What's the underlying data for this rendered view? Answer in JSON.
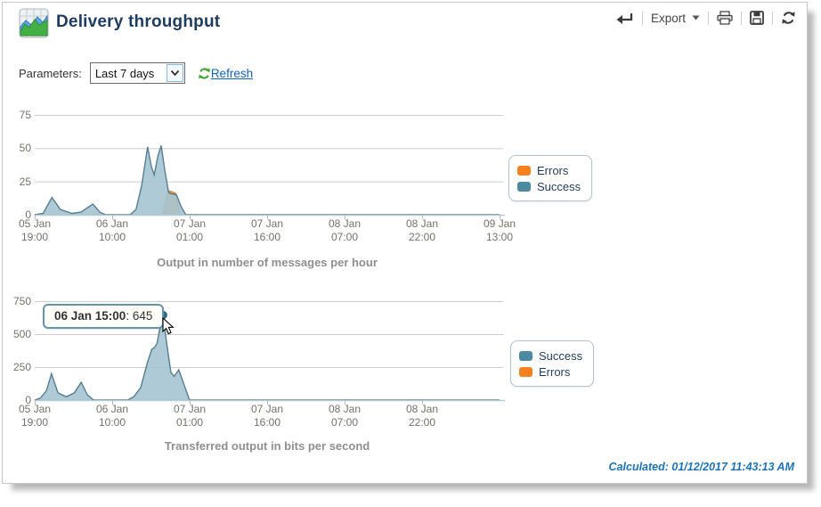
{
  "header": {
    "title": "Delivery throughput"
  },
  "toolbar": {
    "export_label": "Export"
  },
  "parameters": {
    "label": "Parameters:",
    "period_value": "Last 7 days",
    "refresh_label": "Refresh"
  },
  "chart_data": [
    {
      "type": "area",
      "title": "Output in number of messages per hour",
      "ylabel": "messages per hour",
      "ylim": [
        0,
        75
      ],
      "y_ticks": [
        0,
        25,
        50,
        75
      ],
      "x_ticks": [
        [
          "05 Jan",
          "19:00"
        ],
        [
          "06 Jan",
          "10:00"
        ],
        [
          "07 Jan",
          "01:00"
        ],
        [
          "07 Jan",
          "16:00"
        ],
        [
          "08 Jan",
          "07:00"
        ],
        [
          "08 Jan",
          "22:00"
        ],
        [
          "09 Jan",
          "13:00"
        ]
      ],
      "grid": true,
      "legend_position": "right",
      "legend": [
        {
          "label": "Errors",
          "color": "#f6821f"
        },
        {
          "label": "Success",
          "color": "#4d8aa2"
        }
      ],
      "series": [
        {
          "name": "Errors",
          "fill": "#f0a050",
          "stroke": "#df7f1f",
          "points": [
            [
              0,
              0
            ],
            [
              0.275,
              0
            ],
            [
              0.287,
              18
            ],
            [
              0.297,
              17
            ],
            [
              0.303,
              16
            ],
            [
              0.312,
              0
            ],
            [
              1,
              0
            ]
          ]
        },
        {
          "name": "Success",
          "fill": "#a5c4d2",
          "stroke": "#547e91",
          "points": [
            [
              0,
              0
            ],
            [
              0.018,
              1
            ],
            [
              0.037,
              13
            ],
            [
              0.055,
              4
            ],
            [
              0.08,
              1
            ],
            [
              0.1,
              2
            ],
            [
              0.125,
              8
            ],
            [
              0.14,
              2
            ],
            [
              0.152,
              0
            ],
            [
              0.205,
              0
            ],
            [
              0.218,
              4
            ],
            [
              0.23,
              22
            ],
            [
              0.243,
              51
            ],
            [
              0.251,
              36
            ],
            [
              0.257,
              30
            ],
            [
              0.265,
              44
            ],
            [
              0.272,
              52
            ],
            [
              0.28,
              33
            ],
            [
              0.288,
              17
            ],
            [
              0.291,
              16
            ],
            [
              0.305,
              15
            ],
            [
              0.315,
              6
            ],
            [
              0.325,
              0
            ],
            [
              1,
              0
            ]
          ]
        }
      ]
    },
    {
      "type": "area",
      "title": "Transferred output in bits per second",
      "ylabel": "bits per second",
      "ylim": [
        0,
        750
      ],
      "y_ticks": [
        0,
        250,
        500,
        750
      ],
      "x_ticks": [
        [
          "05 Jan",
          "19:00"
        ],
        [
          "06 Jan",
          "10:00"
        ],
        [
          "07 Jan",
          "01:00"
        ],
        [
          "07 Jan",
          "16:00"
        ],
        [
          "08 Jan",
          "07:00"
        ],
        [
          "08 Jan",
          "22:00"
        ]
      ],
      "grid": true,
      "legend_position": "right",
      "legend": [
        {
          "label": "Success",
          "color": "#4d8aa2"
        },
        {
          "label": "Errors",
          "color": "#f6821f"
        }
      ],
      "series": [
        {
          "name": "Errors",
          "fill": "#f0a050",
          "stroke": "#df7f1f",
          "points": [
            [
              0,
              0
            ],
            [
              1,
              0
            ]
          ]
        },
        {
          "name": "Success",
          "fill": "#a5c4d2",
          "stroke": "#547e91",
          "points": [
            [
              0,
              0
            ],
            [
              0.012,
              15
            ],
            [
              0.025,
              70
            ],
            [
              0.036,
              200
            ],
            [
              0.05,
              55
            ],
            [
              0.068,
              25
            ],
            [
              0.085,
              55
            ],
            [
              0.1,
              135
            ],
            [
              0.113,
              40
            ],
            [
              0.127,
              0
            ],
            [
              0.2,
              0
            ],
            [
              0.213,
              25
            ],
            [
              0.228,
              95
            ],
            [
              0.243,
              290
            ],
            [
              0.252,
              385
            ],
            [
              0.258,
              400
            ],
            [
              0.263,
              430
            ],
            [
              0.268,
              520
            ],
            [
              0.276,
              645
            ],
            [
              0.284,
              430
            ],
            [
              0.293,
              210
            ],
            [
              0.3,
              180
            ],
            [
              0.31,
              230
            ],
            [
              0.32,
              130
            ],
            [
              0.333,
              0
            ],
            [
              1,
              0
            ]
          ]
        }
      ],
      "tooltip": {
        "label": "06 Jan 15:00",
        "separator": ": ",
        "value": "645",
        "point_frac": 0.276,
        "point_value": 645
      }
    }
  ],
  "footer": {
    "calculated": "Calculated: 01/12/2017 11:43:13 AM"
  }
}
